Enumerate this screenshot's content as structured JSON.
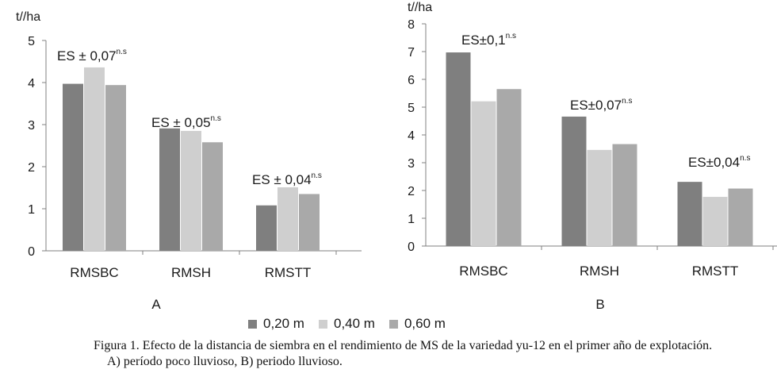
{
  "legend": [
    {
      "label": "0,20 m",
      "color": "#7f7f7f"
    },
    {
      "label": "0,40 m",
      "color": "#cfcfcf"
    },
    {
      "label": "0,60 m",
      "color": "#a9a9a9"
    }
  ],
  "caption": {
    "line1": "Figura 1. Efecto de la distancia de siembra en el rendimiento de MS de la variedad yu-12 en el primer año de explotación.",
    "line2": "A) período poco lluvioso, B) periodo lluvioso."
  },
  "chart_data": [
    {
      "type": "bar",
      "panel_label": "A",
      "unit_label": "t//ha",
      "ylim": [
        0,
        5
      ],
      "yticks": [
        0,
        1,
        2,
        3,
        4,
        5
      ],
      "categories": [
        "RMSBC",
        "RMSH",
        "RMSTT"
      ],
      "series": [
        {
          "name": "0,20 m",
          "values": [
            3.97,
            2.91,
            1.08
          ]
        },
        {
          "name": "0,40 m",
          "values": [
            4.36,
            2.85,
            1.51
          ]
        },
        {
          "name": "0,60 m",
          "values": [
            3.94,
            2.58,
            1.35
          ]
        }
      ],
      "annotations": [
        {
          "text": "ES ± 0,07",
          "sup": "n.s"
        },
        {
          "text": "ES ± 0,05",
          "sup": "n.s"
        },
        {
          "text": "ES ± 0,04",
          "sup": "n.s"
        }
      ],
      "grid": false
    },
    {
      "type": "bar",
      "panel_label": "B",
      "unit_label": "t//ha",
      "ylim": [
        0,
        8
      ],
      "yticks": [
        0,
        1,
        2,
        3,
        4,
        5,
        6,
        7,
        8
      ],
      "categories": [
        "RMSBC",
        "RMSH",
        "RMSTT"
      ],
      "series": [
        {
          "name": "0,20 m",
          "values": [
            6.97,
            4.66,
            2.31
          ]
        },
        {
          "name": "0,40 m",
          "values": [
            5.21,
            3.46,
            1.77
          ]
        },
        {
          "name": "0,60 m",
          "values": [
            5.65,
            3.67,
            2.07
          ]
        }
      ],
      "annotations": [
        {
          "text": "ES±0,1",
          "sup": "n.s"
        },
        {
          "text": "ES±0,07",
          "sup": "n.s"
        },
        {
          "text": "ES±0,04",
          "sup": "n.s"
        }
      ],
      "grid": false
    }
  ]
}
